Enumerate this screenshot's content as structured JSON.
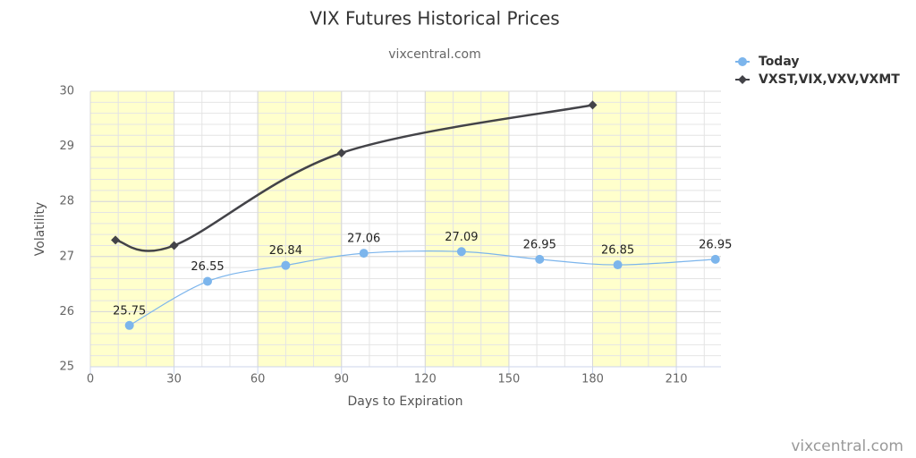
{
  "chart_data": {
    "type": "line",
    "title": "VIX Futures Historical Prices",
    "subtitle": "vixcentral.com",
    "credit": "vixcentral.com",
    "x_label": "Days to Expiration",
    "y_label": "Volatility",
    "xlim": [
      0,
      226
    ],
    "xticks": [
      0,
      30,
      60,
      90,
      120,
      150,
      180,
      210
    ],
    "ylim": [
      25,
      30
    ],
    "yticks": [
      25,
      26,
      27,
      28,
      29,
      30
    ],
    "x_minor_interval": 10,
    "y_minor_interval": 0.2,
    "plot_bands": [
      [
        0,
        30
      ],
      [
        60,
        90
      ],
      [
        120,
        150
      ],
      [
        180,
        210
      ]
    ],
    "band_color": "#ffffcc",
    "grid": true,
    "legend_position": "top-right",
    "series": [
      {
        "name": "Today",
        "color": "#7cb5ec",
        "marker": "circle",
        "data_labels": true,
        "x": [
          14,
          42,
          70,
          98,
          133,
          161,
          189,
          224
        ],
        "values": [
          25.75,
          26.55,
          26.84,
          27.06,
          27.09,
          26.95,
          26.85,
          26.95
        ]
      },
      {
        "name": "VXST,VIX,VXV,VXMT",
        "color": "#434348",
        "marker": "diamond",
        "data_labels": false,
        "x": [
          9,
          30,
          90,
          180
        ],
        "values": [
          27.3,
          27.2,
          28.88,
          29.75
        ]
      }
    ]
  }
}
